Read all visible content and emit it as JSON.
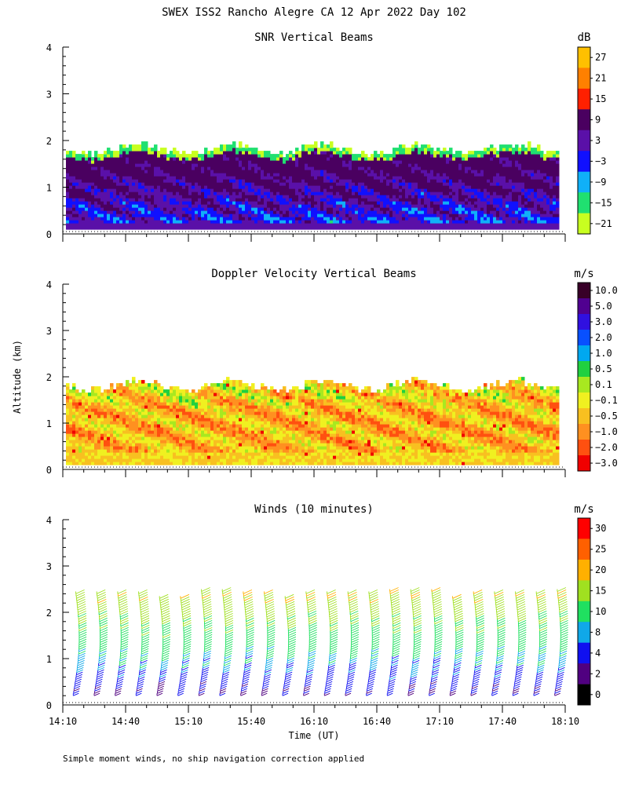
{
  "figure": {
    "title": "SWEX ISS2 Rancho Alegre CA  12 Apr 2022 Day 102",
    "ylabel": "Altitude (km)",
    "xlabel": "Time (UT)",
    "footnote": "Simple moment winds, no ship navigation correction applied"
  },
  "chart_data": [
    {
      "type": "heatmap",
      "title": "SNR Vertical Beams",
      "xlabel": "",
      "ylabel": "Altitude (km)",
      "xlim": [
        "14:10",
        "18:10"
      ],
      "ylim": [
        0,
        4
      ],
      "yticks": [
        0,
        1,
        2,
        3,
        4
      ],
      "xticks": [],
      "grid": false,
      "colorbar": {
        "unit": "dB",
        "ticks": [
          "27",
          "21",
          "15",
          "9",
          "3",
          "−3",
          "−9",
          "−15",
          "−21"
        ],
        "colors": [
          "#ffc000",
          "#ff8000",
          "#ff2000",
          "#4a0060",
          "#5a10a8",
          "#1010ff",
          "#10b0f8",
          "#20e070",
          "#c8ff20"
        ]
      },
      "profile_top_km": 1.85
    },
    {
      "type": "heatmap",
      "title": "Doppler Velocity Vertical Beams",
      "xlabel": "",
      "ylabel": "Altitude (km)",
      "xlim": [
        "14:10",
        "18:10"
      ],
      "ylim": [
        0,
        4
      ],
      "yticks": [
        0,
        1,
        2,
        3,
        4
      ],
      "xticks": [],
      "grid": false,
      "colorbar": {
        "unit": "m/s",
        "ticks": [
          "10.0",
          "5.0",
          "3.0",
          "2.0",
          "1.0",
          "0.5",
          "0.1",
          "−0.1",
          "−0.5",
          "−1.0",
          "−2.0",
          "−3.0"
        ],
        "colors": [
          "#380028",
          "#500090",
          "#3010e0",
          "#0850ff",
          "#00a8f0",
          "#20d040",
          "#a8e820",
          "#f0f020",
          "#f8c020",
          "#ff9020",
          "#ff5010",
          "#f00000"
        ]
      },
      "profile_top_km": 1.85
    },
    {
      "type": "scatter",
      "title": "Winds (10 minutes)",
      "xlabel": "Time (UT)",
      "ylabel": "Altitude (km)",
      "xlim": [
        "14:10",
        "18:10"
      ],
      "ylim": [
        0,
        4
      ],
      "yticks": [
        0,
        1,
        2,
        3,
        4
      ],
      "xticks": [
        "14:10",
        "14:40",
        "15:10",
        "15:40",
        "16:10",
        "16:40",
        "17:10",
        "17:40",
        "18:10"
      ],
      "grid": false,
      "colorbar": {
        "unit": "m/s",
        "ticks": [
          "30",
          "25",
          "20",
          "15",
          "10",
          "8",
          "4",
          "2",
          "0"
        ],
        "colors": [
          "#ff0000",
          "#ff6000",
          "#ffb000",
          "#a0e020",
          "#20e060",
          "#10a8e8",
          "#1010f0",
          "#500080",
          "#000000"
        ]
      },
      "profile_times": [
        "14:15",
        "14:25",
        "14:35",
        "14:45",
        "14:55",
        "15:05",
        "15:15",
        "15:25",
        "15:35",
        "15:45",
        "15:55",
        "16:05",
        "16:15",
        "16:25",
        "16:35",
        "16:45",
        "16:55",
        "17:05",
        "17:15",
        "17:25",
        "17:35",
        "17:45",
        "17:55",
        "18:05"
      ],
      "profile_top_km": [
        2.4,
        2.4,
        2.4,
        2.4,
        2.3,
        2.3,
        2.45,
        2.45,
        2.4,
        2.4,
        2.3,
        2.4,
        2.4,
        2.4,
        2.4,
        2.45,
        2.45,
        2.45,
        2.3,
        2.4,
        2.4,
        2.4,
        2.4,
        2.45
      ],
      "profile_bottom_km": 0.2
    }
  ]
}
